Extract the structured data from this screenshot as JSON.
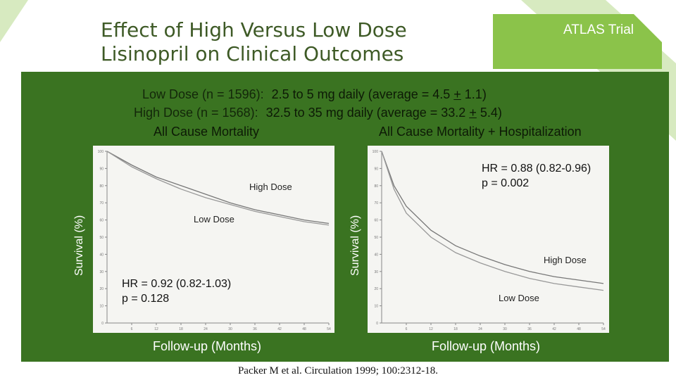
{
  "header": {
    "title_line1": "Effect of High Versus Low Dose",
    "title_line2": "Lisinopril on Clinical Outcomes",
    "tag": "ATLAS Trial"
  },
  "description": {
    "low_label": "Low Dose (n = 1596):",
    "low_pre": "2.5 to 5 mg daily (average = 4.5 ",
    "low_pm": "+",
    "low_post": " 1.1)",
    "high_label": "High Dose (n = 1568):",
    "high_pre": "32.5 to 35 mg daily (average = 33.2 ",
    "high_pm": "+",
    "high_post": " 5.4)"
  },
  "citation": "Packer M et al. Circulation 1999; 100:2312-18.",
  "colors": {
    "panel": "#3a7321",
    "accent_green": "#8bc34a",
    "title": "#3e5a26"
  },
  "chart_data": [
    {
      "type": "line",
      "title": "All Cause Mortality",
      "xlabel": "Follow-up (Months)",
      "ylabel": "Survival (%)",
      "xlim": [
        0,
        54
      ],
      "ylim": [
        0,
        100
      ],
      "x_ticks": [
        "6",
        "12",
        "18",
        "24",
        "30",
        "36",
        "42",
        "48",
        "54"
      ],
      "y_ticks": [
        "100",
        "90",
        "80",
        "70",
        "60",
        "50",
        "40",
        "30",
        "20",
        "10",
        "0"
      ],
      "annotation": [
        "HR = 0.92 (0.82-1.03)",
        "p = 0.128"
      ],
      "series": [
        {
          "name": "High Dose",
          "x": [
            0,
            6,
            12,
            18,
            24,
            30,
            36,
            42,
            48,
            54
          ],
          "y": [
            100,
            92,
            85,
            80,
            75,
            70,
            66,
            63,
            60,
            58
          ]
        },
        {
          "name": "Low Dose",
          "x": [
            0,
            6,
            12,
            18,
            24,
            30,
            36,
            42,
            48,
            54
          ],
          "y": [
            100,
            91,
            84,
            78,
            73,
            69,
            65,
            62,
            59,
            57
          ]
        }
      ]
    },
    {
      "type": "line",
      "title": "All Cause Mortality + Hospitalization",
      "xlabel": "Follow-up (Months)",
      "ylabel": "Survival (%)",
      "xlim": [
        0,
        54
      ],
      "ylim": [
        0,
        100
      ],
      "x_ticks": [
        "6",
        "12",
        "18",
        "24",
        "30",
        "36",
        "42",
        "48",
        "54"
      ],
      "y_ticks": [
        "100",
        "90",
        "80",
        "70",
        "60",
        "50",
        "40",
        "30",
        "20",
        "10",
        "0"
      ],
      "annotation": [
        "HR = 0.88 (0.82-0.96)",
        "p = 0.002"
      ],
      "series": [
        {
          "name": "High Dose",
          "x": [
            0,
            3,
            6,
            12,
            18,
            24,
            30,
            36,
            42,
            48,
            54
          ],
          "y": [
            100,
            80,
            68,
            54,
            45,
            39,
            34,
            30,
            27,
            25,
            23
          ]
        },
        {
          "name": "Low Dose",
          "x": [
            0,
            3,
            6,
            12,
            18,
            24,
            30,
            36,
            42,
            48,
            54
          ],
          "y": [
            100,
            78,
            64,
            50,
            41,
            35,
            30,
            26,
            23,
            21,
            19
          ]
        }
      ]
    }
  ]
}
